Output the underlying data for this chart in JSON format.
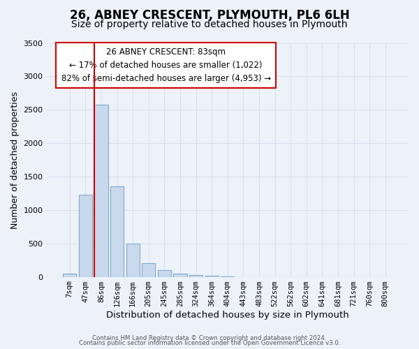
{
  "title": "26, ABNEY CRESCENT, PLYMOUTH, PL6 6LH",
  "subtitle": "Size of property relative to detached houses in Plymouth",
  "xlabel": "Distribution of detached houses by size in Plymouth",
  "ylabel": "Number of detached properties",
  "bar_labels": [
    "7sqm",
    "47sqm",
    "86sqm",
    "126sqm",
    "166sqm",
    "205sqm",
    "245sqm",
    "285sqm",
    "324sqm",
    "364sqm",
    "404sqm",
    "443sqm",
    "483sqm",
    "522sqm",
    "562sqm",
    "602sqm",
    "641sqm",
    "681sqm",
    "721sqm",
    "760sqm",
    "800sqm"
  ],
  "bar_values": [
    50,
    1230,
    2580,
    1350,
    500,
    200,
    105,
    50,
    30,
    15,
    5,
    0,
    0,
    0,
    0,
    0,
    0,
    0,
    0,
    0,
    0
  ],
  "bar_color": "#c9d9ed",
  "bar_edgecolor": "#7fa8cc",
  "bar_linewidth": 0.8,
  "vline_index": 2,
  "vline_color": "#cc0000",
  "vline_linewidth": 1.5,
  "ylim": [
    0,
    3500
  ],
  "yticks": [
    0,
    500,
    1000,
    1500,
    2000,
    2500,
    3000,
    3500
  ],
  "annotation_text": "26 ABNEY CRESCENT: 83sqm\n← 17% of detached houses are smaller (1,022)\n82% of semi-detached houses are larger (4,953) →",
  "box_color": "#ffffff",
  "box_edgecolor": "#cc0000",
  "footer_line1": "Contains HM Land Registry data © Crown copyright and database right 2024.",
  "footer_line2": "Contains public sector information licensed under the Open Government Licence v3.0.",
  "bg_color": "#edf2f9",
  "grid_color": "#d8e0ed",
  "title_fontsize": 12,
  "subtitle_fontsize": 10,
  "tick_fontsize": 7.5,
  "ylabel_fontsize": 9,
  "xlabel_fontsize": 9.5,
  "annotation_fontsize": 8.5
}
